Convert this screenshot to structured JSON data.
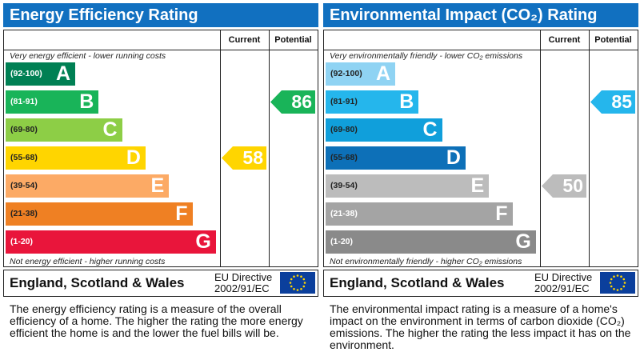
{
  "panels": [
    {
      "title": "Energy Efficiency Rating",
      "col_current": "Current",
      "col_potential": "Potential",
      "top_desc": "Very energy efficient - lower running costs",
      "bottom_desc": "Not energy efficient - higher running costs",
      "bands": [
        {
          "range": "(92-100)",
          "letter": "A",
          "color": "#008054",
          "range_color": "#ffffff"
        },
        {
          "range": "(81-91)",
          "letter": "B",
          "color": "#19b459",
          "range_color": "#ffffff"
        },
        {
          "range": "(69-80)",
          "letter": "C",
          "color": "#8dce46",
          "range_color": "#222222"
        },
        {
          "range": "(55-68)",
          "letter": "D",
          "color": "#ffd500",
          "range_color": "#222222"
        },
        {
          "range": "(39-54)",
          "letter": "E",
          "color": "#fcaa65",
          "range_color": "#222222"
        },
        {
          "range": "(21-38)",
          "letter": "F",
          "color": "#ef8023",
          "range_color": "#222222"
        },
        {
          "range": "(1-20)",
          "letter": "G",
          "color": "#e9153b",
          "range_color": "#ffffff"
        }
      ],
      "current": {
        "value": "58",
        "band": "D",
        "color": "#ffd500"
      },
      "potential": {
        "value": "86",
        "band": "B",
        "color": "#19b459"
      },
      "country": "England, Scotland & Wales",
      "directive_line1": "EU Directive",
      "directive_line2": "2002/91/EC",
      "info": "The energy efficiency rating is a measure of the overall efficiency of a home. The higher the rating the more energy efficient the home is and the lower the fuel bills will be."
    },
    {
      "title": "Environmental Impact (CO₂) Rating",
      "col_current": "Current",
      "col_potential": "Potential",
      "top_desc": "Very environmentally friendly - lower CO₂ emissions",
      "bottom_desc": "Not environmentally friendly - higher CO₂ emissions",
      "bands": [
        {
          "range": "(92-100)",
          "letter": "A",
          "color": "#8fd3f3",
          "range_color": "#222222"
        },
        {
          "range": "(81-91)",
          "letter": "B",
          "color": "#25b6ec",
          "range_color": "#222222"
        },
        {
          "range": "(69-80)",
          "letter": "C",
          "color": "#109fdb",
          "range_color": "#222222"
        },
        {
          "range": "(55-68)",
          "letter": "D",
          "color": "#0d70b8",
          "range_color": "#222222"
        },
        {
          "range": "(39-54)",
          "letter": "E",
          "color": "#bcbcbc",
          "range_color": "#222222"
        },
        {
          "range": "(21-38)",
          "letter": "F",
          "color": "#a4a4a4",
          "range_color": "#ffffff"
        },
        {
          "range": "(1-20)",
          "letter": "G",
          "color": "#8a8a8a",
          "range_color": "#ffffff"
        }
      ],
      "current": {
        "value": "50",
        "band": "E",
        "color": "#bcbcbc"
      },
      "potential": {
        "value": "85",
        "band": "B",
        "color": "#25b6ec"
      },
      "country": "England, Scotland & Wales",
      "directive_line1": "EU Directive",
      "directive_line2": "2002/91/EC",
      "info": "The environmental impact rating is a measure of a home's impact on the environment in terms of carbon dioxide (CO₂) emissions. The higher the rating the less impact it has on the environment."
    }
  ]
}
